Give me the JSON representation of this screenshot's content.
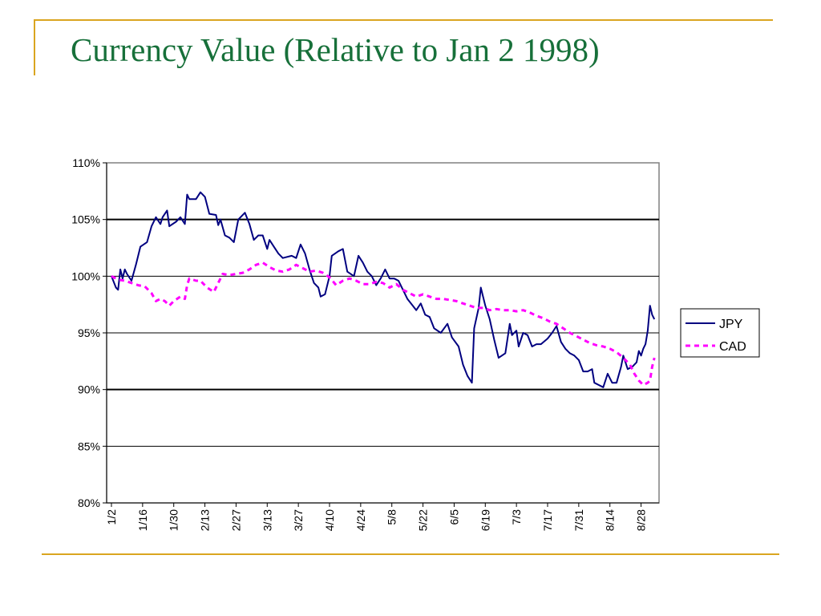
{
  "slide": {
    "title": "Currency Value (Relative to Jan 2 1998)",
    "accent_color": "#daa520",
    "title_color": "#17703a"
  },
  "chart_data": {
    "type": "line",
    "title": "",
    "xlabel": "",
    "ylabel": "",
    "ylim": [
      0.8,
      1.1
    ],
    "y_ticks": [
      "80%",
      "85%",
      "90%",
      "95%",
      "100%",
      "105%",
      "110%"
    ],
    "y_tick_values": [
      0.8,
      0.85,
      0.9,
      0.95,
      1.0,
      1.05,
      1.1
    ],
    "x_ticks": [
      "1/2",
      "1/16",
      "1/30",
      "2/13",
      "2/27",
      "3/13",
      "3/27",
      "4/10",
      "4/24",
      "5/8",
      "5/22",
      "6/5",
      "6/19",
      "7/3",
      "7/17",
      "7/31",
      "8/14",
      "8/28"
    ],
    "xlim": [
      "1/2",
      "9/4"
    ],
    "gridlines": [
      0.8,
      0.85,
      0.9,
      0.95,
      1.0,
      1.05,
      1.1
    ],
    "bold_gridlines": [
      0.9,
      1.05
    ],
    "legend_position": "right",
    "series": [
      {
        "name": "JPY",
        "color": "#000080",
        "style": "solid",
        "points": [
          [
            "1/2",
            1.0
          ],
          [
            "1/4",
            0.99
          ],
          [
            "1/5",
            0.988
          ],
          [
            "1/6",
            1.006
          ],
          [
            "1/7",
            0.998
          ],
          [
            "1/8",
            1.006
          ],
          [
            "1/9",
            1.002
          ],
          [
            "1/11",
            0.996
          ],
          [
            "1/13",
            1.01
          ],
          [
            "1/15",
            1.026
          ],
          [
            "1/18",
            1.03
          ],
          [
            "1/20",
            1.044
          ],
          [
            "1/22",
            1.052
          ],
          [
            "1/24",
            1.046
          ],
          [
            "1/25",
            1.052
          ],
          [
            "1/27",
            1.058
          ],
          [
            "1/28",
            1.044
          ],
          [
            "1/31",
            1.048
          ],
          [
            "2/2",
            1.052
          ],
          [
            "2/4",
            1.046
          ],
          [
            "2/5",
            1.072
          ],
          [
            "2/6",
            1.068
          ],
          [
            "2/9",
            1.068
          ],
          [
            "2/11",
            1.074
          ],
          [
            "2/13",
            1.07
          ],
          [
            "2/15",
            1.055
          ],
          [
            "2/18",
            1.054
          ],
          [
            "2/19",
            1.045
          ],
          [
            "2/20",
            1.05
          ],
          [
            "2/22",
            1.036
          ],
          [
            "2/24",
            1.034
          ],
          [
            "2/26",
            1.03
          ],
          [
            "2/28",
            1.05
          ],
          [
            "3/3",
            1.056
          ],
          [
            "3/5",
            1.046
          ],
          [
            "3/7",
            1.032
          ],
          [
            "3/9",
            1.036
          ],
          [
            "3/11",
            1.036
          ],
          [
            "3/13",
            1.024
          ],
          [
            "3/14",
            1.032
          ],
          [
            "3/16",
            1.026
          ],
          [
            "3/18",
            1.02
          ],
          [
            "3/20",
            1.016
          ],
          [
            "3/24",
            1.018
          ],
          [
            "3/26",
            1.016
          ],
          [
            "3/28",
            1.028
          ],
          [
            "3/30",
            1.02
          ],
          [
            "4/1",
            1.006
          ],
          [
            "4/3",
            0.994
          ],
          [
            "4/5",
            0.99
          ],
          [
            "4/6",
            0.982
          ],
          [
            "4/8",
            0.984
          ],
          [
            "4/10",
            1.0
          ],
          [
            "4/11",
            1.018
          ],
          [
            "4/14",
            1.022
          ],
          [
            "4/16",
            1.024
          ],
          [
            "4/18",
            1.004
          ],
          [
            "4/21",
            1.0
          ],
          [
            "4/23",
            1.018
          ],
          [
            "4/25",
            1.012
          ],
          [
            "4/27",
            1.004
          ],
          [
            "4/29",
            1.0
          ],
          [
            "5/1",
            0.992
          ],
          [
            "5/3",
            0.998
          ],
          [
            "5/5",
            1.006
          ],
          [
            "5/7",
            0.998
          ],
          [
            "5/9",
            0.998
          ],
          [
            "5/11",
            0.996
          ],
          [
            "5/13",
            0.988
          ],
          [
            "5/15",
            0.98
          ],
          [
            "5/19",
            0.97
          ],
          [
            "5/21",
            0.976
          ],
          [
            "5/23",
            0.966
          ],
          [
            "5/25",
            0.964
          ],
          [
            "5/27",
            0.954
          ],
          [
            "5/30",
            0.95
          ],
          [
            "6/2",
            0.958
          ],
          [
            "6/4",
            0.946
          ],
          [
            "6/7",
            0.938
          ],
          [
            "6/9",
            0.922
          ],
          [
            "6/11",
            0.912
          ],
          [
            "6/13",
            0.906
          ],
          [
            "6/14",
            0.954
          ],
          [
            "6/16",
            0.972
          ],
          [
            "6/17",
            0.99
          ],
          [
            "6/19",
            0.974
          ],
          [
            "6/21",
            0.962
          ],
          [
            "6/23",
            0.944
          ],
          [
            "6/25",
            0.928
          ],
          [
            "6/28",
            0.932
          ],
          [
            "6/30",
            0.958
          ],
          [
            "7/1",
            0.948
          ],
          [
            "7/3",
            0.952
          ],
          [
            "7/4",
            0.938
          ],
          [
            "7/6",
            0.95
          ],
          [
            "7/8",
            0.948
          ],
          [
            "7/10",
            0.938
          ],
          [
            "7/12",
            0.94
          ],
          [
            "7/14",
            0.94
          ],
          [
            "7/17",
            0.945
          ],
          [
            "7/19",
            0.95
          ],
          [
            "7/21",
            0.956
          ],
          [
            "7/23",
            0.942
          ],
          [
            "7/25",
            0.936
          ],
          [
            "7/27",
            0.932
          ],
          [
            "7/29",
            0.93
          ],
          [
            "7/31",
            0.926
          ],
          [
            "8/2",
            0.916
          ],
          [
            "8/4",
            0.916
          ],
          [
            "8/6",
            0.918
          ],
          [
            "8/7",
            0.906
          ],
          [
            "8/9",
            0.904
          ],
          [
            "8/11",
            0.902
          ],
          [
            "8/13",
            0.914
          ],
          [
            "8/15",
            0.906
          ],
          [
            "8/17",
            0.906
          ],
          [
            "8/19",
            0.92
          ],
          [
            "8/20",
            0.93
          ],
          [
            "8/22",
            0.918
          ],
          [
            "8/24",
            0.92
          ],
          [
            "8/26",
            0.924
          ],
          [
            "8/27",
            0.934
          ],
          [
            "8/28",
            0.93
          ],
          [
            "8/29",
            0.936
          ],
          [
            "8/30",
            0.94
          ],
          [
            "8/31",
            0.952
          ],
          [
            "9/1",
            0.974
          ],
          [
            "9/2",
            0.966
          ],
          [
            "9/3",
            0.962
          ]
        ]
      },
      {
        "name": "CAD",
        "color": "#ff00ff",
        "style": "dashed",
        "points": [
          [
            "1/2",
            1.0
          ],
          [
            "1/5",
            0.997
          ],
          [
            "1/8",
            0.996
          ],
          [
            "1/11",
            0.994
          ],
          [
            "1/14",
            0.992
          ],
          [
            "1/17",
            0.991
          ],
          [
            "1/20",
            0.985
          ],
          [
            "1/22",
            0.978
          ],
          [
            "1/24",
            0.98
          ],
          [
            "1/26",
            0.978
          ],
          [
            "1/28",
            0.974
          ],
          [
            "1/30",
            0.978
          ],
          [
            "2/2",
            0.982
          ],
          [
            "2/4",
            0.98
          ],
          [
            "2/5",
            0.992
          ],
          [
            "2/6",
            0.998
          ],
          [
            "2/9",
            0.996
          ],
          [
            "2/11",
            0.996
          ],
          [
            "2/14",
            0.99
          ],
          [
            "2/17",
            0.986
          ],
          [
            "2/19",
            0.994
          ],
          [
            "2/21",
            1.002
          ],
          [
            "2/24",
            1.001
          ],
          [
            "2/27",
            1.002
          ],
          [
            "3/2",
            1.003
          ],
          [
            "3/5",
            1.006
          ],
          [
            "3/8",
            1.01
          ],
          [
            "3/11",
            1.012
          ],
          [
            "3/14",
            1.008
          ],
          [
            "3/17",
            1.005
          ],
          [
            "3/20",
            1.004
          ],
          [
            "3/23",
            1.006
          ],
          [
            "3/26",
            1.01
          ],
          [
            "3/29",
            1.007
          ],
          [
            "4/1",
            1.004
          ],
          [
            "4/4",
            1.005
          ],
          [
            "4/7",
            1.003
          ],
          [
            "4/10",
            0.999
          ],
          [
            "4/13",
            0.992
          ],
          [
            "4/16",
            0.996
          ],
          [
            "4/19",
            0.998
          ],
          [
            "4/22",
            0.996
          ],
          [
            "4/25",
            0.993
          ],
          [
            "4/28",
            0.993
          ],
          [
            "5/1",
            0.995
          ],
          [
            "5/4",
            0.994
          ],
          [
            "5/7",
            0.99
          ],
          [
            "5/10",
            0.993
          ],
          [
            "5/13",
            0.988
          ],
          [
            "5/16",
            0.985
          ],
          [
            "5/19",
            0.982
          ],
          [
            "5/22",
            0.984
          ],
          [
            "5/25",
            0.982
          ],
          [
            "5/28",
            0.98
          ],
          [
            "5/31",
            0.98
          ],
          [
            "6/3",
            0.979
          ],
          [
            "6/6",
            0.978
          ],
          [
            "6/9",
            0.976
          ],
          [
            "6/12",
            0.974
          ],
          [
            "6/15",
            0.972
          ],
          [
            "6/18",
            0.972
          ],
          [
            "6/21",
            0.97
          ],
          [
            "6/24",
            0.971
          ],
          [
            "6/27",
            0.97
          ],
          [
            "6/30",
            0.97
          ],
          [
            "7/3",
            0.969
          ],
          [
            "7/6",
            0.97
          ],
          [
            "7/9",
            0.968
          ],
          [
            "7/12",
            0.965
          ],
          [
            "7/15",
            0.963
          ],
          [
            "7/18",
            0.96
          ],
          [
            "7/21",
            0.958
          ],
          [
            "7/24",
            0.954
          ],
          [
            "7/27",
            0.95
          ],
          [
            "7/30",
            0.947
          ],
          [
            "8/2",
            0.944
          ],
          [
            "8/5",
            0.941
          ],
          [
            "8/8",
            0.939
          ],
          [
            "8/11",
            0.938
          ],
          [
            "8/14",
            0.936
          ],
          [
            "8/17",
            0.933
          ],
          [
            "8/20",
            0.928
          ],
          [
            "8/23",
            0.922
          ],
          [
            "8/25",
            0.914
          ],
          [
            "8/27",
            0.908
          ],
          [
            "8/29",
            0.904
          ],
          [
            "8/31",
            0.906
          ],
          [
            "9/1",
            0.908
          ],
          [
            "9/2",
            0.92
          ],
          [
            "9/3",
            0.928
          ]
        ]
      }
    ]
  }
}
